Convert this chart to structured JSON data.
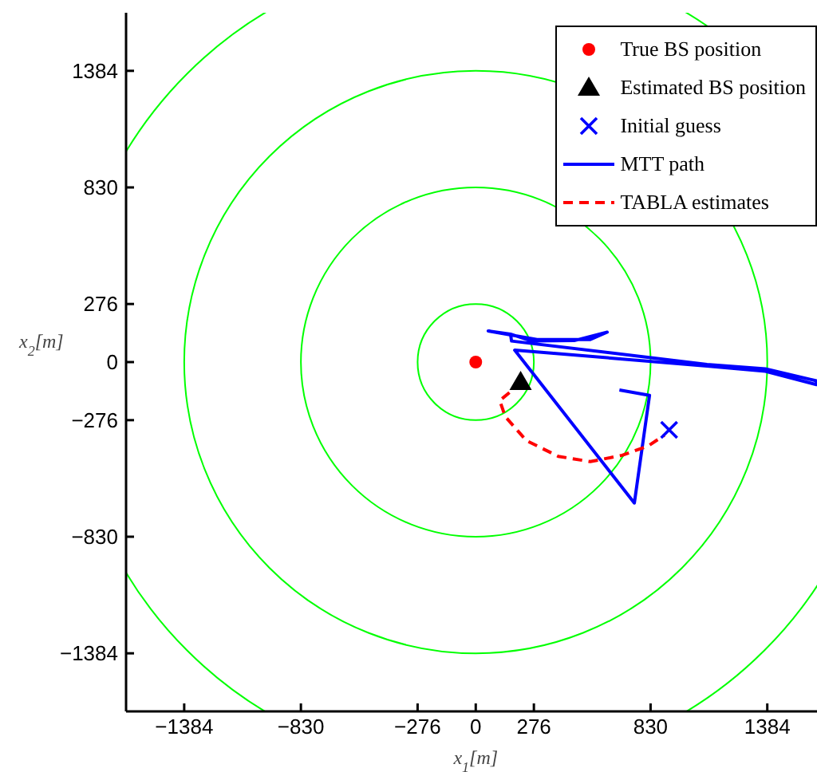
{
  "chart_data": {
    "type": "line",
    "xlabel": "x$_{1}$[m]",
    "ylabel": "x$_{2}$[m]",
    "xlim": [
      -1660,
      1620
    ],
    "ylim": [
      -1660,
      1660
    ],
    "xticks": [
      -1384,
      -830,
      -276,
      0,
      276,
      830,
      1384
    ],
    "yticks": [
      -1384,
      -830,
      -276,
      0,
      276,
      830,
      1384
    ],
    "legend": "top right",
    "grid": false,
    "series": [
      {
        "type": "scatter",
        "name": "True BS position",
        "color": "#ff0000",
        "marker": "circle",
        "x": [
          0
        ],
        "values": [
          0
        ]
      },
      {
        "type": "scatter",
        "name": "Estimated BS position",
        "color": "#000000",
        "marker": "triangle",
        "x": [
          213
        ],
        "values": [
          -95
        ]
      },
      {
        "type": "scatter",
        "name": "Initial guess",
        "color": "#0000ff",
        "marker": "cross",
        "x": [
          918
        ],
        "values": [
          -322
        ]
      },
      {
        "name": "MTT path",
        "color": "#0000ff",
        "line_style": "solid",
        "x": [
          682,
          825,
          753,
          185,
          1098,
          1375,
          1617,
          1617,
          1375,
          1098,
          170,
          165,
          59,
          291,
          544,
          624,
          467,
          265,
          165
        ],
        "values": [
          -133,
          -158,
          -670,
          57,
          -19,
          -44,
          -107,
          -89,
          -32,
          -11,
          100,
          133,
          148,
          107,
          107,
          142,
          102,
          100,
          133
        ]
      },
      {
        "name": "TABLA estimates",
        "color": "#ff0000",
        "line_style": "dashed",
        "x": [
          160,
          114,
          140,
          240,
          392,
          544,
          695,
          820,
          896
        ],
        "values": [
          -145,
          -183,
          -259,
          -373,
          -448,
          -473,
          -443,
          -398,
          -347
        ]
      }
    ]
  }
}
